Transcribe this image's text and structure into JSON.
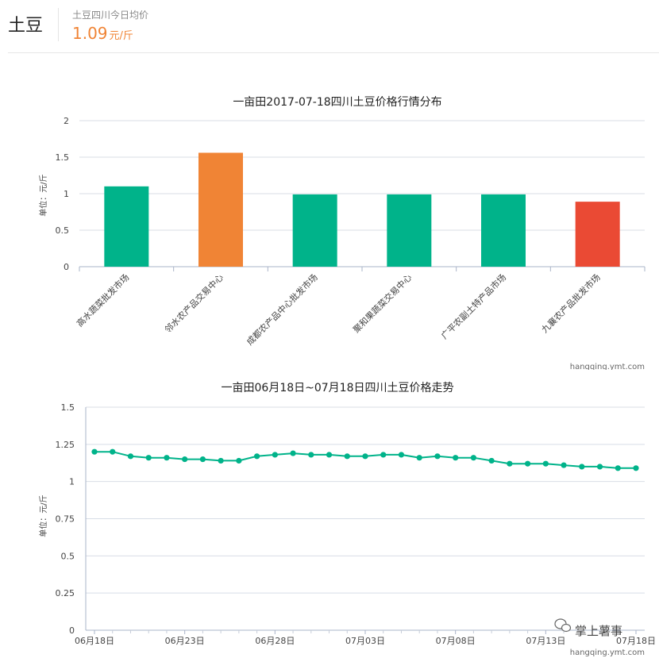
{
  "header": {
    "product": "土豆",
    "avg_label": "土豆四川今日均价",
    "avg_price": "1.09",
    "avg_unit": "元/斤"
  },
  "chart_data": [
    {
      "type": "bar",
      "title": "一亩田2017-07-18四川土豆价格行情分布",
      "ylabel": "单位：元/斤",
      "xlabel": "",
      "ylim": [
        0,
        2
      ],
      "yticks": [
        "0",
        "0.5",
        "1",
        "1.5",
        "2"
      ],
      "categories": [
        "高水蔬菜批发市场",
        "邻水农产品交易中心",
        "成都农产品中心批发市场",
        "聚和果蔬菜交易中心",
        "广平农副土特产品市场",
        "九襄农产品批发市场"
      ],
      "values": [
        1.1,
        1.56,
        0.99,
        0.99,
        0.99,
        0.89
      ],
      "colors": [
        "#00b38a",
        "#f08435",
        "#00b38a",
        "#00b38a",
        "#00b38a",
        "#ea4a34"
      ],
      "source": "hangqing.ymt.com"
    },
    {
      "type": "line",
      "title": "一亩田06月18日~07月18日四川土豆价格走势",
      "ylabel": "单位：元/斤",
      "xlabel": "",
      "ylim": [
        0,
        1.5
      ],
      "yticks": [
        "0",
        "0.25",
        "0.5",
        "0.75",
        "1",
        "1.25",
        "1.5"
      ],
      "xticks": [
        "06月18日",
        "06月23日",
        "06月28日",
        "07月03日",
        "07月08日",
        "07月13日",
        "07月18日"
      ],
      "values": [
        1.2,
        1.2,
        1.17,
        1.16,
        1.16,
        1.15,
        1.15,
        1.14,
        1.14,
        1.17,
        1.18,
        1.19,
        1.18,
        1.18,
        1.17,
        1.17,
        1.18,
        1.18,
        1.16,
        1.17,
        1.16,
        1.16,
        1.14,
        1.12,
        1.12,
        1.12,
        1.11,
        1.1,
        1.1,
        1.09,
        1.09
      ],
      "color": "#00b38a",
      "source": "hangqing.ymt.com"
    }
  ],
  "watermark": {
    "text": "掌上薯事"
  }
}
